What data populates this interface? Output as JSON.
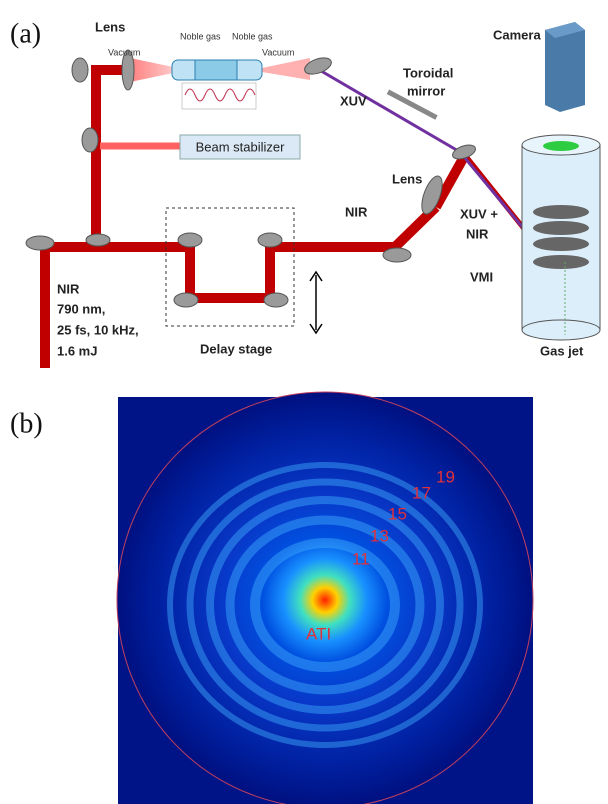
{
  "panel_a": {
    "label": "(a)",
    "labels": {
      "lens_1": "Lens",
      "vacuum_1": "Vacuum",
      "noble_gas_1": "Noble gas",
      "noble_gas_2": "Noble gas",
      "vacuum_2": "Vacuum",
      "camera": "Camera",
      "toroidal": "Toroidal",
      "mirror": "mirror",
      "xuv": "XUV",
      "beam_stabilizer": "Beam stabilizer",
      "lens_2": "Lens",
      "nir": "NIR",
      "xuv_plus": "XUV +",
      "nir_2": "NIR",
      "vmi": "VMI",
      "source": [
        "NIR",
        "790 nm,",
        "25 fs, 10 kHz,",
        "1.6 mJ"
      ],
      "delay_stage": "Delay stage",
      "gas_jet": "Gas jet"
    }
  },
  "panel_b": {
    "label": "(b)",
    "harmonics": [
      "19",
      "17",
      "15",
      "13",
      "11"
    ],
    "ati": "ATI"
  }
}
